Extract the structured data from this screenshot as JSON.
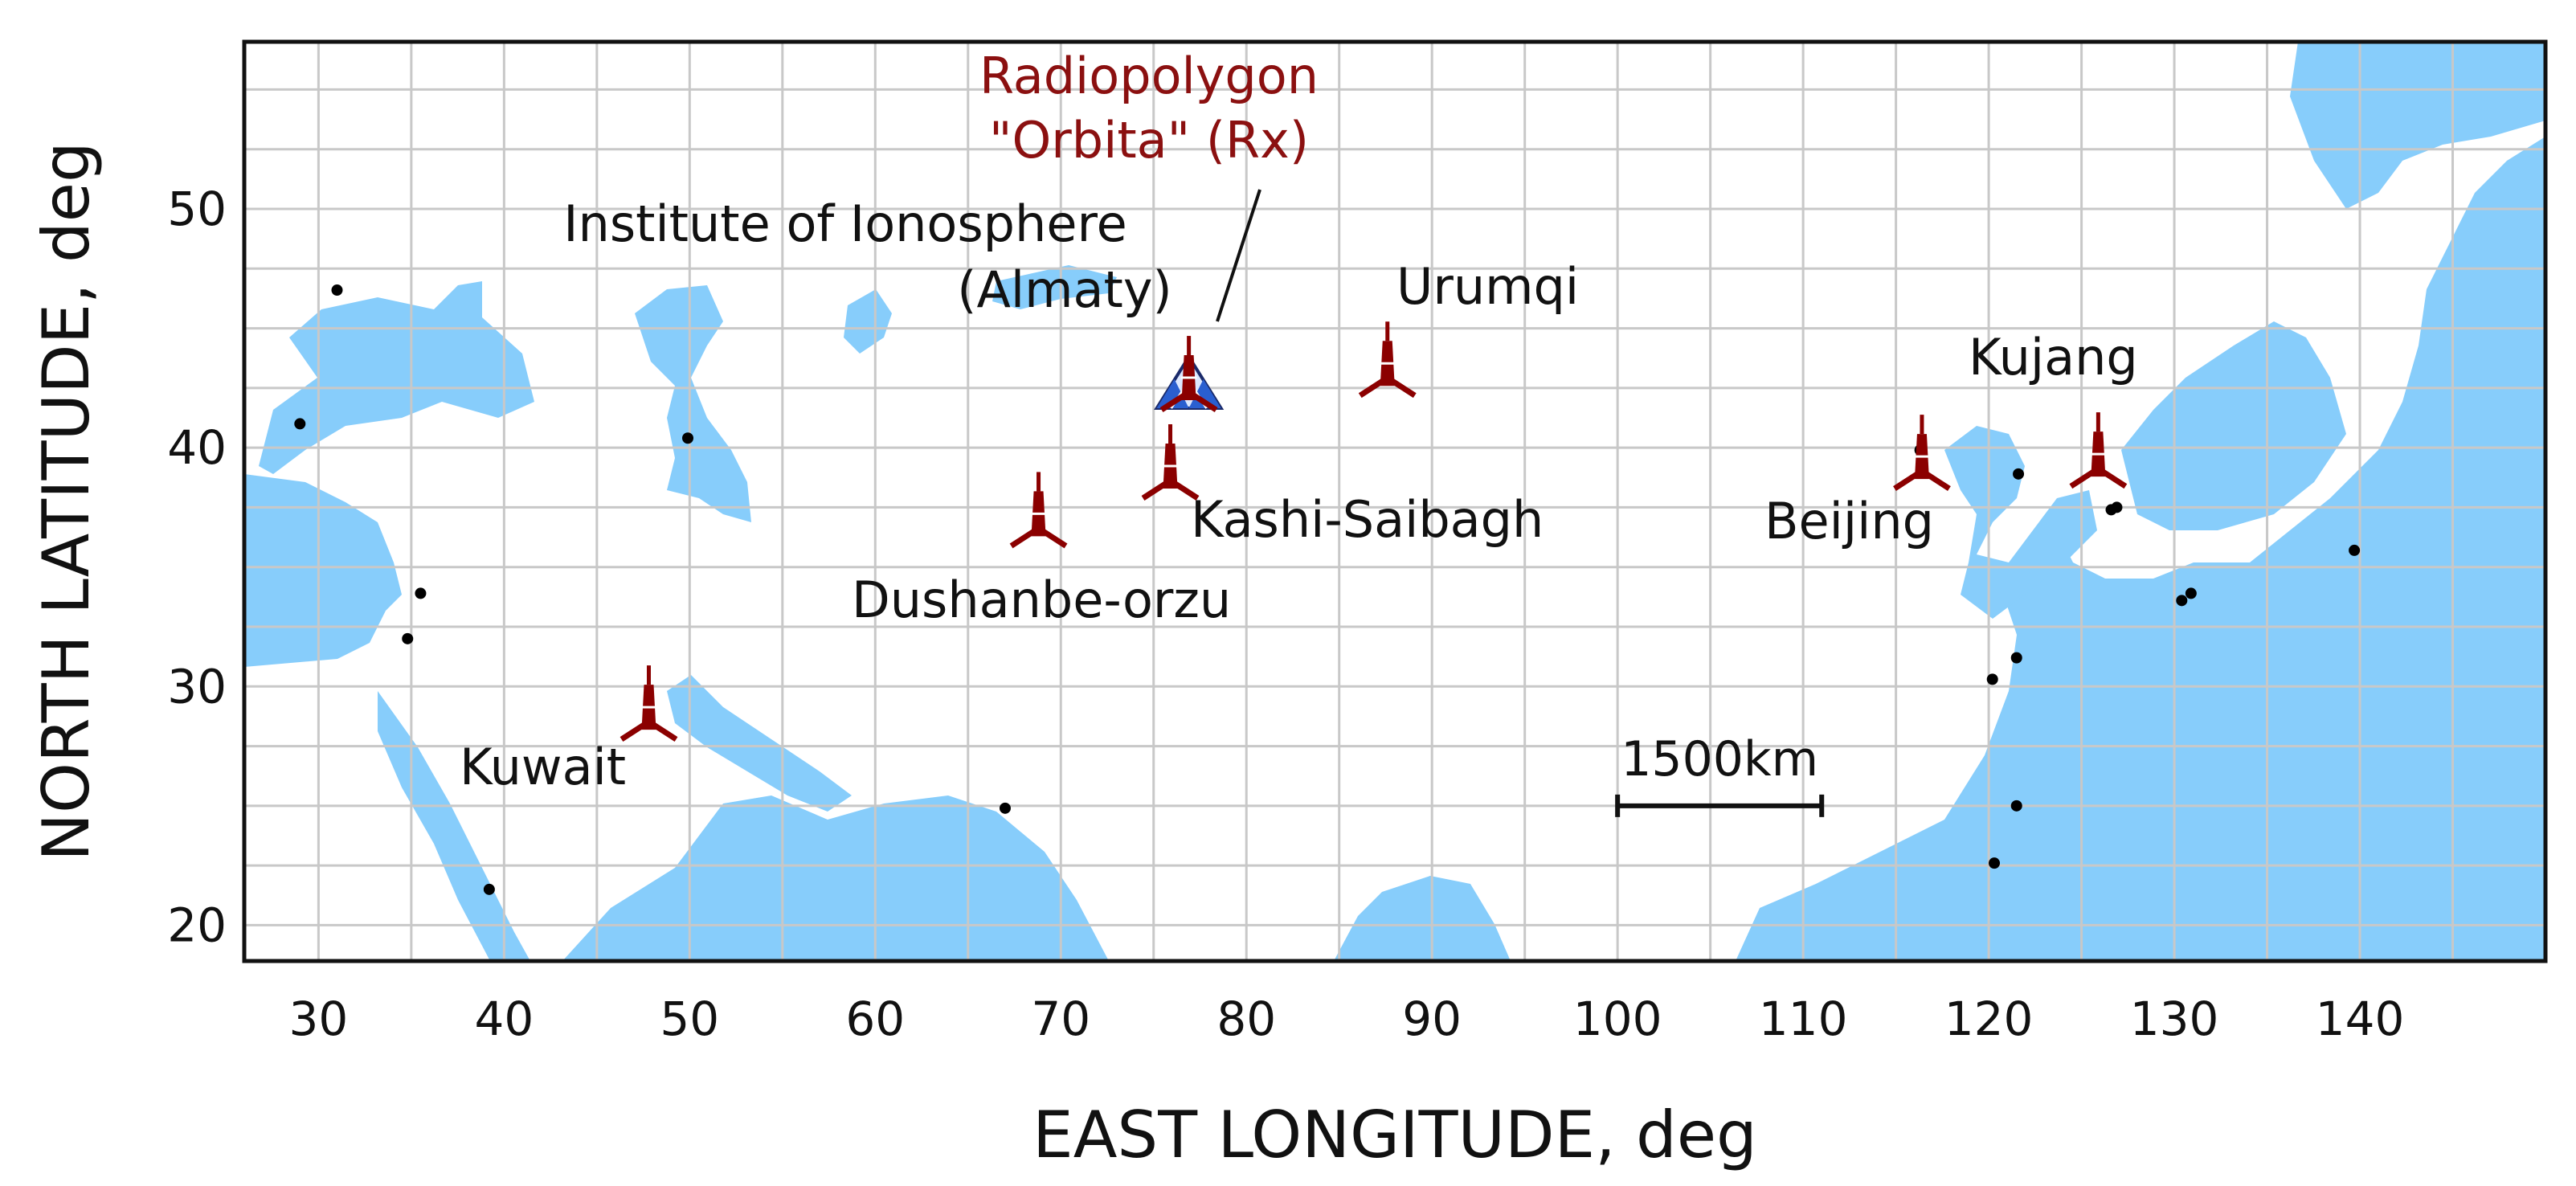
{
  "colors": {
    "water": "#87cdfb",
    "land": "#ffffff",
    "coast_land": "#f4f1d2",
    "grid": "#c8c8c8",
    "tower": "#8b0000",
    "rx_label": "#8b1010",
    "rx_blue": "#2a5fd0",
    "city_dot": "#000000"
  },
  "axes": {
    "x_title": "EAST LONGITUDE, deg",
    "y_title": "NORTH LATITUDE, deg",
    "x_range": [
      26,
      150
    ],
    "y_range": [
      18.5,
      57
    ],
    "x_ticks": [
      30,
      40,
      50,
      60,
      70,
      80,
      90,
      100,
      110,
      120,
      130,
      140
    ],
    "y_ticks": [
      20,
      30,
      40,
      50
    ],
    "x_tick_labels": [
      "30",
      "40",
      "50",
      "60",
      "70",
      "80",
      "90",
      "100",
      "110",
      "120",
      "130",
      "140"
    ],
    "y_tick_labels": [
      "20",
      "30",
      "40",
      "50"
    ]
  },
  "receiver": {
    "label_line1": "Radiopolygon",
    "label_line2": "\"Orbita\" (Rx)",
    "lon": 76.9,
    "lat": 43.2
  },
  "transmitters": [
    {
      "name": "Institute of Ionosphere",
      "name_line2": "(Almaty)",
      "lon": 76.9,
      "lat": 43.2
    },
    {
      "name": "Urumqi",
      "lon": 87.6,
      "lat": 43.8
    },
    {
      "name": "Kashi-Saibagh",
      "lon": 75.9,
      "lat": 39.5
    },
    {
      "name": "Dushanbe-orzu",
      "lon": 68.8,
      "lat": 37.5
    },
    {
      "name": "Kuwait",
      "lon": 47.8,
      "lat": 29.4
    },
    {
      "name": "Beijing",
      "lon": 116.4,
      "lat": 39.9
    },
    {
      "name": "Kujang",
      "lon": 125.9,
      "lat": 40.0
    }
  ],
  "scale_bar": {
    "label": "1500km",
    "lon_start": 100,
    "lon_end": 111,
    "lat": 25
  },
  "city_dots": [
    {
      "lon": 31.0,
      "lat": 46.6
    },
    {
      "lon": 29.0,
      "lat": 41.0
    },
    {
      "lon": 49.9,
      "lat": 40.4
    },
    {
      "lon": 35.5,
      "lat": 33.9
    },
    {
      "lon": 34.8,
      "lat": 32.0
    },
    {
      "lon": 39.2,
      "lat": 21.5
    },
    {
      "lon": 67.0,
      "lat": 24.9
    },
    {
      "lon": 121.6,
      "lat": 38.9
    },
    {
      "lon": 121.5,
      "lat": 31.2
    },
    {
      "lon": 120.2,
      "lat": 30.3
    },
    {
      "lon": 121.5,
      "lat": 25.0
    },
    {
      "lon": 120.3,
      "lat": 22.6
    },
    {
      "lon": 126.9,
      "lat": 37.5
    },
    {
      "lon": 126.6,
      "lat": 37.4
    },
    {
      "lon": 130.4,
      "lat": 33.6
    },
    {
      "lon": 130.9,
      "lat": 33.9
    },
    {
      "lon": 139.7,
      "lat": 35.7
    },
    {
      "lon": 116.3,
      "lat": 39.9
    }
  ]
}
